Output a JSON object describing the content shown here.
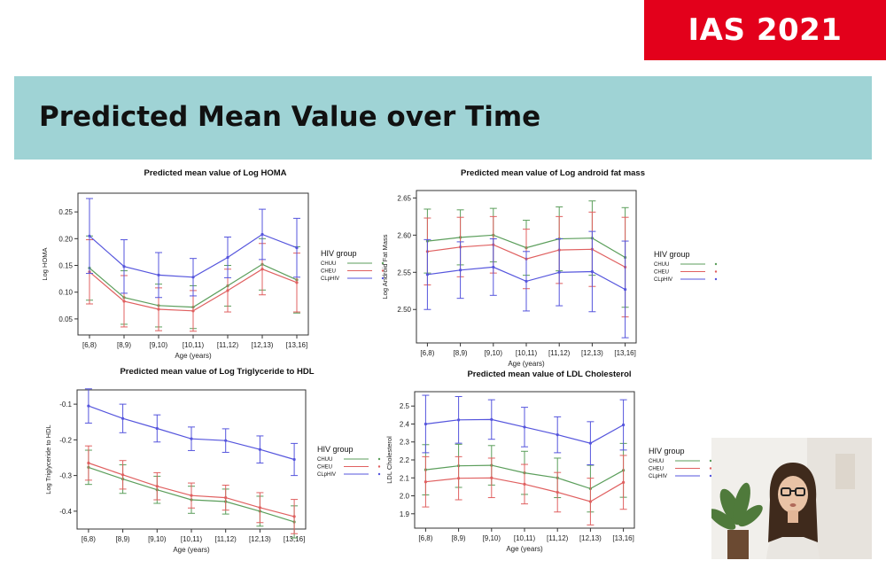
{
  "badge": "IAS 2021",
  "slide_title": "Predicted Mean Value over Time",
  "chart_data": [
    {
      "type": "line",
      "title": "Predicted mean value of Log HOMA",
      "xlabel": "Age (years)",
      "ylabel": "Log HOMA",
      "categories": [
        "[6,8)",
        "[8,9)",
        "[9,10)",
        "[10,11)",
        "[11,12)",
        "[12,13)",
        "[13,16]"
      ],
      "ylim": [
        0.02,
        0.285
      ],
      "yticks": [
        "0.05",
        "0.10",
        "0.15",
        "0.20",
        "0.25"
      ],
      "legend_title": "HIV group",
      "legend_position": "right",
      "series": [
        {
          "name": "CHUU",
          "color": "#5b9e5b",
          "values": [
            0.145,
            0.09,
            0.075,
            0.072,
            0.112,
            0.152,
            0.123
          ],
          "err": [
            0.06,
            0.05,
            0.04,
            0.04,
            0.038,
            0.048,
            0.062
          ]
        },
        {
          "name": "CHEU",
          "color": "#e06060",
          "values": [
            0.138,
            0.083,
            0.068,
            0.065,
            0.103,
            0.143,
            0.118
          ],
          "err": [
            0.06,
            0.048,
            0.04,
            0.038,
            0.04,
            0.048,
            0.055
          ]
        },
        {
          "name": "CLpHIV",
          "color": "#5555dd",
          "values": [
            0.205,
            0.148,
            0.132,
            0.128,
            0.165,
            0.208,
            0.183
          ],
          "err": [
            0.07,
            0.05,
            0.042,
            0.035,
            0.038,
            0.047,
            0.055
          ]
        }
      ]
    },
    {
      "type": "line",
      "title": "Predicted mean value of Log android fat mass",
      "xlabel": "Age (years)",
      "ylabel": "Log Android Fat Mass",
      "categories": [
        "[6,8)",
        "[8,9)",
        "[9,10)",
        "[10,11)",
        "[11,12)",
        "[12,13)",
        "[13,16]"
      ],
      "ylim": [
        2.455,
        2.66
      ],
      "yticks": [
        "2.50",
        "2.55",
        "2.60",
        "2.65"
      ],
      "legend_title": "HIV group",
      "legend_position": "right",
      "series": [
        {
          "name": "CHUU",
          "color": "#5b9e5b",
          "values": [
            2.592,
            2.597,
            2.6,
            2.583,
            2.595,
            2.596,
            2.57
          ],
          "err": [
            0.043,
            0.037,
            0.036,
            0.037,
            0.043,
            0.05,
            0.067
          ]
        },
        {
          "name": "CHEU",
          "color": "#e06060",
          "values": [
            2.578,
            2.584,
            2.587,
            2.568,
            2.58,
            2.581,
            2.557
          ],
          "err": [
            0.045,
            0.04,
            0.038,
            0.04,
            0.045,
            0.05,
            0.067
          ]
        },
        {
          "name": "CLpHIV",
          "color": "#5555dd",
          "values": [
            2.547,
            2.553,
            2.557,
            2.538,
            2.55,
            2.551,
            2.527
          ],
          "err": [
            0.047,
            0.038,
            0.038,
            0.04,
            0.045,
            0.054,
            0.065
          ]
        }
      ]
    },
    {
      "type": "line",
      "title": "Predicted mean value of Log Triglyceride to HDL",
      "xlabel": "Age (years)",
      "ylabel": "Log Triglyceride to HDL",
      "categories": [
        "[6,8)",
        "[8,9)",
        "[9,10)",
        "[10,11)",
        "[11,12)",
        "[12,13)",
        "[13,16]"
      ],
      "ylim": [
        -0.45,
        -0.06
      ],
      "yticks": [
        "-0.1",
        "-0.2",
        "-0.3",
        "-0.4"
      ],
      "legend_title": "HIV group",
      "legend_position": "right",
      "series": [
        {
          "name": "CHUU",
          "color": "#5b9e5b",
          "values": [
            -0.277,
            -0.31,
            -0.34,
            -0.368,
            -0.373,
            -0.4,
            -0.43
          ],
          "err": [
            0.048,
            0.04,
            0.038,
            0.038,
            0.035,
            0.042,
            0.045
          ]
        },
        {
          "name": "CHEU",
          "color": "#e06060",
          "values": [
            -0.265,
            -0.298,
            -0.33,
            -0.356,
            -0.362,
            -0.39,
            -0.415
          ],
          "err": [
            0.048,
            0.04,
            0.038,
            0.035,
            0.035,
            0.042,
            0.048
          ]
        },
        {
          "name": "CLpHIV",
          "color": "#5555dd",
          "values": [
            -0.105,
            -0.14,
            -0.168,
            -0.197,
            -0.202,
            -0.227,
            -0.255
          ],
          "err": [
            0.048,
            0.04,
            0.038,
            0.033,
            0.033,
            0.038,
            0.045
          ]
        }
      ]
    },
    {
      "type": "line",
      "title": "Predicted mean value of LDL Cholesterol",
      "xlabel": "Age (years)",
      "ylabel": "LDL Cholesterol",
      "categories": [
        "[6,8)",
        "[8,9)",
        "[9,10)",
        "[10,11)",
        "[11,12)",
        "[12,13)",
        "[13,16]"
      ],
      "ylim": [
        1.82,
        2.58
      ],
      "yticks": [
        "1.9",
        "2.0",
        "2.1",
        "2.2",
        "2.3",
        "2.4",
        "2.5"
      ],
      "legend_title": "HIV group",
      "legend_position": "right",
      "series": [
        {
          "name": "CHUU",
          "color": "#5b9e5b",
          "values": [
            2.145,
            2.167,
            2.17,
            2.128,
            2.1,
            2.04,
            2.142
          ],
          "err": [
            0.14,
            0.12,
            0.11,
            0.12,
            0.11,
            0.13,
            0.15
          ]
        },
        {
          "name": "CHEU",
          "color": "#e06060",
          "values": [
            2.078,
            2.098,
            2.1,
            2.065,
            2.02,
            1.968,
            2.075
          ],
          "err": [
            0.14,
            0.12,
            0.11,
            0.11,
            0.11,
            0.13,
            0.15
          ]
        },
        {
          "name": "CLpHIV",
          "color": "#5555dd",
          "values": [
            2.4,
            2.423,
            2.425,
            2.383,
            2.34,
            2.293,
            2.395
          ],
          "err": [
            0.16,
            0.13,
            0.11,
            0.11,
            0.1,
            0.12,
            0.14
          ]
        }
      ]
    }
  ]
}
